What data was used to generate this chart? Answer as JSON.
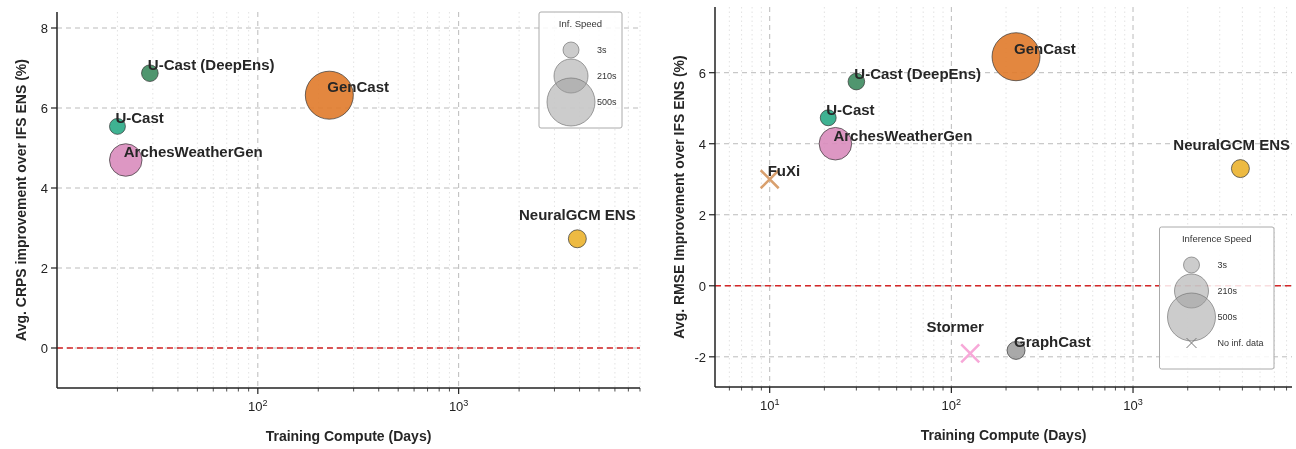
{
  "chart_data": [
    {
      "type": "bubble",
      "xlabel": "Training Compute (Days)",
      "ylabel": "Avg. CRPS improvement over IFS ENS (%)",
      "log": "x",
      "xlim": [
        10,
        8000
      ],
      "ylim": [
        -1,
        8.4
      ],
      "xticks": [
        {
          "value": 20,
          "label": null
        },
        {
          "value": 30,
          "label": null
        },
        {
          "value": 40,
          "label": null
        },
        {
          "value": 50,
          "label": null
        },
        {
          "value": 60,
          "label": null
        },
        {
          "value": 70,
          "label": null
        },
        {
          "value": 80,
          "label": null
        },
        {
          "value": 90,
          "label": null
        },
        {
          "value": 100,
          "label": "10$^{2}$"
        },
        {
          "value": 200,
          "label": null
        },
        {
          "value": 300,
          "label": null
        },
        {
          "value": 400,
          "label": null
        },
        {
          "value": 500,
          "label": null
        },
        {
          "value": 600,
          "label": null
        },
        {
          "value": 700,
          "label": null
        },
        {
          "value": 800,
          "label": null
        },
        {
          "value": 900,
          "label": null
        },
        {
          "value": 1000,
          "label": "10$^{3}$"
        },
        {
          "value": 2000,
          "label": null
        },
        {
          "value": 3000,
          "label": null
        },
        {
          "value": 4000,
          "label": null
        },
        {
          "value": 5000,
          "label": null
        },
        {
          "value": 6000,
          "label": null
        },
        {
          "value": 7000,
          "label": null
        },
        {
          "value": 8000,
          "label": null
        }
      ],
      "yticks": [
        0,
        2,
        4,
        6,
        8
      ],
      "grid": true,
      "legend_title": "Inf. Speed",
      "annotations": [
        "3s",
        "210s",
        "500s"
      ],
      "ref_lines": [
        {
          "axis": "y",
          "value": 0,
          "color": "#d62728",
          "line_style": "dashed"
        }
      ],
      "series": [
        {
          "name": "U-Cast (DeepEns)",
          "color": "#3d8b5f",
          "x": [
            29
          ],
          "values": [
            6.87
          ],
          "sizes": [
            0.12
          ]
        },
        {
          "name": "GenCast",
          "color": "#e07a2a",
          "x": [
            227
          ],
          "values": [
            6.32
          ],
          "sizes": [
            1
          ]
        },
        {
          "name": "U-Cast",
          "color": "#2aaa86",
          "x": [
            20
          ],
          "values": [
            5.54
          ],
          "sizes": [
            0.11
          ]
        },
        {
          "name": "ArchesWeatherGen",
          "color": "#d98cbc",
          "x": [
            22
          ],
          "values": [
            4.7
          ],
          "sizes": [
            0.46
          ]
        },
        {
          "name": "NeuralGCM ENS",
          "color": "#ebb32e",
          "x": [
            3900
          ],
          "values": [
            2.73
          ],
          "sizes": [
            0.14
          ]
        }
      ]
    },
    {
      "type": "bubble",
      "xlabel": "Training Compute (Days)",
      "ylabel": "Avg. RMSE Improvement over IFS ENS (%)",
      "log": "x",
      "xlim": [
        5,
        7500
      ],
      "ylim": [
        -2.85,
        7.85
      ],
      "xticks": [
        {
          "value": 6,
          "label": null
        },
        {
          "value": 7,
          "label": null
        },
        {
          "value": 8,
          "label": null
        },
        {
          "value": 9,
          "label": null
        },
        {
          "value": 10,
          "label": "10$^{1}$"
        },
        {
          "value": 20,
          "label": null
        },
        {
          "value": 30,
          "label": null
        },
        {
          "value": 40,
          "label": null
        },
        {
          "value": 50,
          "label": null
        },
        {
          "value": 60,
          "label": null
        },
        {
          "value": 70,
          "label": null
        },
        {
          "value": 80,
          "label": null
        },
        {
          "value": 90,
          "label": null
        },
        {
          "value": 100,
          "label": "10$^{2}$"
        },
        {
          "value": 200,
          "label": null
        },
        {
          "value": 300,
          "label": null
        },
        {
          "value": 400,
          "label": null
        },
        {
          "value": 500,
          "label": null
        },
        {
          "value": 600,
          "label": null
        },
        {
          "value": 700,
          "label": null
        },
        {
          "value": 800,
          "label": null
        },
        {
          "value": 900,
          "label": null
        },
        {
          "value": 1000,
          "label": "10$^{3}$"
        },
        {
          "value": 2000,
          "label": null
        },
        {
          "value": 3000,
          "label": null
        },
        {
          "value": 4000,
          "label": null
        },
        {
          "value": 5000,
          "label": null
        },
        {
          "value": 6000,
          "label": null
        },
        {
          "value": 7000,
          "label": null
        }
      ],
      "yticks": [
        -2,
        0,
        2,
        4,
        6
      ],
      "grid": true,
      "legend_title": "Inference Speed",
      "annotations": [
        "3s",
        "210s",
        "500s",
        "No inf. data"
      ],
      "ref_lines": [
        {
          "axis": "y",
          "value": 0,
          "color": "#d62728",
          "line_style": "dashed"
        }
      ],
      "series": [
        {
          "name": "GenCast",
          "color": "#e07a2a",
          "x": [
            227
          ],
          "values": [
            6.45
          ],
          "sizes": [
            1
          ]
        },
        {
          "name": "U-Cast (DeepEns)",
          "color": "#3d8b5f",
          "x": [
            30
          ],
          "values": [
            5.75
          ],
          "sizes": [
            0.12
          ]
        },
        {
          "name": "U-Cast",
          "color": "#2aaa86",
          "x": [
            21
          ],
          "values": [
            4.73
          ],
          "sizes": [
            0.11
          ]
        },
        {
          "name": "ArchesWeatherGen",
          "color": "#d98cbc",
          "x": [
            23
          ],
          "values": [
            4.0
          ],
          "sizes": [
            0.46
          ]
        },
        {
          "name": "FuXi",
          "type": "scatter",
          "marker": "cross",
          "color": "#d9a06e",
          "x": [
            10
          ],
          "values": [
            3.0
          ]
        },
        {
          "name": "NeuralGCM ENS",
          "color": "#ebb32e",
          "x": [
            3900
          ],
          "values": [
            3.3
          ],
          "sizes": [
            0.14
          ]
        },
        {
          "name": "Stormer",
          "type": "scatter",
          "marker": "cross",
          "color": "#f7a8d8",
          "x": [
            127
          ],
          "values": [
            -1.9
          ]
        },
        {
          "name": "GraphCast",
          "color": "#a0a0a0",
          "x": [
            227
          ],
          "values": [
            -1.82
          ],
          "sizes": [
            0.14
          ]
        }
      ]
    }
  ]
}
